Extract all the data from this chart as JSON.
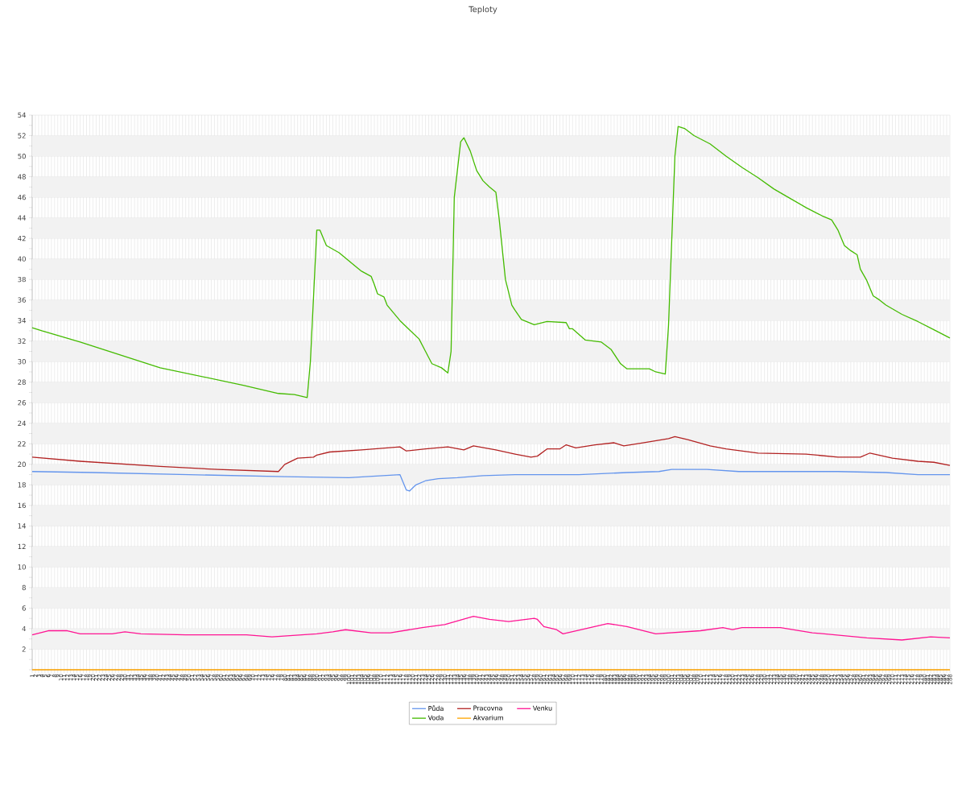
{
  "chart_data": {
    "type": "line",
    "title": "Teploty",
    "xlim": [
      1,
      288
    ],
    "xticks": [
      1,
      2,
      3,
      4,
      5,
      6,
      7,
      8,
      9,
      10,
      11,
      12,
      13,
      14,
      15,
      16,
      17,
      18,
      19,
      20,
      21,
      22,
      23,
      24,
      25,
      26,
      27,
      28,
      29,
      30,
      31,
      32,
      33,
      34,
      35,
      36,
      37,
      38,
      39,
      40,
      41,
      42,
      43,
      44,
      45,
      46,
      47,
      48,
      49,
      50,
      51,
      52,
      53,
      54,
      55,
      56,
      57,
      58,
      59,
      60,
      61,
      62,
      63,
      64,
      65,
      66,
      67,
      68,
      69,
      70,
      71,
      72,
      73,
      74,
      75,
      76,
      77,
      78,
      79,
      80,
      81,
      82,
      83,
      84,
      85,
      86,
      87,
      88,
      89,
      90,
      91,
      92,
      93,
      94,
      95,
      96,
      97,
      98,
      99,
      100,
      101,
      102,
      103,
      104,
      105,
      106,
      107,
      108,
      109,
      110,
      111,
      112,
      113,
      114,
      115,
      116,
      117,
      118,
      119,
      120,
      121,
      122,
      123,
      124,
      125,
      126,
      127,
      128,
      129,
      130,
      131,
      132,
      133,
      134,
      135,
      136,
      137,
      138,
      139,
      140,
      141,
      142,
      143,
      144,
      145,
      146,
      147,
      148,
      149,
      150,
      151,
      152,
      153,
      154,
      155,
      156,
      157,
      158,
      159,
      160,
      161,
      162,
      163,
      164,
      165,
      166,
      167,
      168,
      169,
      170,
      171,
      172,
      173,
      174,
      175,
      176,
      177,
      178,
      179,
      180,
      181,
      182,
      183,
      184,
      185,
      186,
      187,
      188,
      189,
      190,
      191,
      192,
      193,
      194,
      195,
      196,
      197,
      198,
      199,
      200,
      201,
      202,
      203,
      204,
      205,
      206,
      207,
      208,
      209,
      210,
      211,
      212,
      213,
      214,
      215,
      216,
      217,
      218,
      219,
      220,
      221,
      222,
      223,
      224,
      225,
      226,
      227,
      228,
      229,
      230,
      231,
      232,
      233,
      234,
      235,
      236,
      237,
      238,
      239,
      240,
      241,
      242,
      243,
      244,
      245,
      246,
      247,
      248,
      249,
      250,
      251,
      252,
      253,
      254,
      255,
      256,
      257,
      258,
      259,
      260,
      261,
      262,
      263,
      264,
      265,
      266,
      267,
      268,
      269,
      270,
      271,
      272,
      273,
      274,
      275,
      276,
      277,
      278,
      279,
      280,
      281,
      282,
      283,
      284,
      285,
      286,
      287,
      288
    ],
    "ylim": [
      0,
      54
    ],
    "yticks": [
      {
        "value": 0,
        "label": null
      },
      {
        "value": 1,
        "label": null
      },
      2,
      {
        "value": 3,
        "label": null
      },
      4,
      {
        "value": 5,
        "label": null
      },
      6,
      {
        "value": 7,
        "label": null
      },
      8,
      {
        "value": 9,
        "label": null
      },
      10,
      {
        "value": 11,
        "label": null
      },
      12,
      {
        "value": 13,
        "label": null
      },
      14,
      {
        "value": 15,
        "label": null
      },
      16,
      {
        "value": 17,
        "label": null
      },
      18,
      {
        "value": 19,
        "label": null
      },
      20,
      {
        "value": 21,
        "label": null
      },
      22,
      {
        "value": 23,
        "label": null
      },
      24,
      {
        "value": 25,
        "label": null
      },
      26,
      {
        "value": 27,
        "label": null
      },
      28,
      {
        "value": 29,
        "label": null
      },
      30,
      {
        "value": 31,
        "label": null
      },
      32,
      {
        "value": 33,
        "label": null
      },
      34,
      {
        "value": 35,
        "label": null
      },
      36,
      {
        "value": 37,
        "label": null
      },
      38,
      {
        "value": 39,
        "label": null
      },
      40,
      {
        "value": 41,
        "label": null
      },
      42,
      {
        "value": 43,
        "label": null
      },
      44,
      {
        "value": 45,
        "label": null
      },
      46,
      {
        "value": 47,
        "label": null
      },
      48,
      {
        "value": 49,
        "label": null
      },
      50,
      {
        "value": 51,
        "label": null
      },
      52,
      {
        "value": 53,
        "label": null
      },
      54
    ],
    "grid": true,
    "legend": "bottom",
    "marker": "none",
    "line_style": "solid",
    "bands": [
      {
        "axis": "y",
        "from": 2,
        "to": 4,
        "color": "#f2f2f2"
      },
      {
        "axis": "y",
        "from": 6,
        "to": 8,
        "color": "#f2f2f2"
      },
      {
        "axis": "y",
        "from": 10,
        "to": 12,
        "color": "#f2f2f2"
      },
      {
        "axis": "y",
        "from": 14,
        "to": 16,
        "color": "#f2f2f2"
      },
      {
        "axis": "y",
        "from": 18,
        "to": 20,
        "color": "#f2f2f2"
      },
      {
        "axis": "y",
        "from": 22,
        "to": 24,
        "color": "#f2f2f2"
      },
      {
        "axis": "y",
        "from": 26,
        "to": 28,
        "color": "#f2f2f2"
      },
      {
        "axis": "y",
        "from": 30,
        "to": 32,
        "color": "#f2f2f2"
      },
      {
        "axis": "y",
        "from": 34,
        "to": 36,
        "color": "#f2f2f2"
      },
      {
        "axis": "y",
        "from": 38,
        "to": 40,
        "color": "#f2f2f2"
      },
      {
        "axis": "y",
        "from": 42,
        "to": 44,
        "color": "#f2f2f2"
      },
      {
        "axis": "y",
        "from": 46,
        "to": 48,
        "color": "#f2f2f2"
      },
      {
        "axis": "y",
        "from": 50,
        "to": 52,
        "color": "#f2f2f2"
      }
    ],
    "series": [
      {
        "name": "Půda",
        "color": "#6495ed",
        "x": [
          1,
          20,
          50,
          80,
          100,
          116,
          118,
          119,
          121,
          124,
          128,
          134,
          142,
          152,
          172,
          187,
          197,
          201,
          212,
          222,
          253,
          268,
          278,
          288
        ],
        "values": [
          19.3,
          19.2,
          19.0,
          18.8,
          18.7,
          19.0,
          17.5,
          17.4,
          18.0,
          18.4,
          18.6,
          18.7,
          18.9,
          19.0,
          19.0,
          19.2,
          19.3,
          19.5,
          19.5,
          19.3,
          19.3,
          19.2,
          19.0,
          19.0
        ]
      },
      {
        "name": "Voda",
        "color": "#44bb00",
        "x": [
          1,
          4,
          16,
          41,
          67,
          78,
          83,
          87,
          88,
          90,
          91,
          93,
          97,
          102,
          104,
          107,
          108,
          109,
          111,
          112,
          116,
          119,
          122,
          124,
          126,
          129,
          131,
          132,
          133,
          135,
          136,
          138,
          140,
          142,
          144,
          146,
          147,
          149,
          151,
          152,
          154,
          158,
          162,
          168,
          169,
          170,
          174,
          179,
          182,
          185,
          187,
          194,
          196,
          199,
          200,
          202,
          203,
          205,
          208,
          213,
          218,
          223,
          228,
          233,
          238,
          243,
          248,
          251,
          253,
          255,
          257,
          259,
          260,
          262,
          264,
          266,
          268,
          273,
          278,
          283,
          288
        ],
        "values": [
          33.3,
          33.0,
          31.9,
          29.4,
          27.7,
          26.9,
          26.8,
          26.5,
          30.0,
          42.8,
          42.8,
          41.3,
          40.6,
          39.3,
          38.8,
          38.3,
          37.5,
          36.6,
          36.3,
          35.5,
          34.0,
          33.1,
          32.2,
          31.0,
          29.8,
          29.4,
          28.9,
          31.0,
          46.0,
          51.4,
          51.8,
          50.5,
          48.6,
          47.6,
          47.0,
          46.5,
          44.0,
          38.0,
          35.5,
          35.0,
          34.1,
          33.6,
          33.9,
          33.8,
          33.2,
          33.2,
          32.1,
          31.9,
          31.2,
          29.8,
          29.3,
          29.3,
          29.0,
          28.8,
          33.5,
          50.0,
          52.9,
          52.7,
          52.0,
          51.2,
          50.0,
          48.9,
          47.9,
          46.8,
          45.9,
          45.0,
          44.2,
          43.8,
          42.8,
          41.3,
          40.8,
          40.4,
          39.0,
          37.9,
          36.4,
          36.0,
          35.5,
          34.6,
          33.9,
          33.1,
          32.3
        ]
      },
      {
        "name": "Pracovna",
        "color": "#b22222",
        "x": [
          1,
          16,
          41,
          59,
          78,
          80,
          84,
          89,
          90,
          94,
          104,
          116,
          118,
          124,
          131,
          136,
          139,
          146,
          152,
          157,
          159,
          162,
          166,
          168,
          171,
          177,
          183,
          186,
          192,
          200,
          202,
          206,
          213,
          218,
          228,
          243,
          253,
          260,
          263,
          270,
          278,
          283,
          288
        ],
        "values": [
          20.7,
          20.3,
          19.8,
          19.5,
          19.3,
          20.0,
          20.6,
          20.7,
          20.9,
          21.2,
          21.4,
          21.7,
          21.3,
          21.5,
          21.7,
          21.4,
          21.8,
          21.4,
          21.0,
          20.7,
          20.8,
          21.5,
          21.5,
          21.9,
          21.6,
          21.9,
          22.1,
          21.8,
          22.1,
          22.5,
          22.7,
          22.4,
          21.8,
          21.5,
          21.1,
          21.0,
          20.7,
          20.7,
          21.1,
          20.6,
          20.3,
          20.2,
          19.9
        ]
      },
      {
        "name": "Akvarium",
        "color": "#ffa500",
        "x": [
          1,
          288
        ],
        "values": [
          0,
          0
        ]
      },
      {
        "name": "Venku",
        "color": "#ff1493",
        "x": [
          1,
          6,
          12,
          16,
          26,
          30,
          35,
          49,
          68,
          76,
          90,
          95,
          99,
          107,
          113,
          123,
          130,
          139,
          144,
          150,
          158,
          159,
          161,
          165,
          167,
          181,
          187,
          196,
          210,
          217,
          220,
          223,
          235,
          245,
          262,
          273,
          282,
          288
        ],
        "values": [
          3.4,
          3.8,
          3.8,
          3.5,
          3.5,
          3.7,
          3.5,
          3.4,
          3.4,
          3.2,
          3.5,
          3.7,
          3.9,
          3.6,
          3.6,
          4.1,
          4.4,
          5.2,
          4.9,
          4.7,
          5.0,
          4.9,
          4.2,
          3.9,
          3.5,
          4.5,
          4.2,
          3.5,
          3.8,
          4.1,
          3.9,
          4.1,
          4.1,
          3.6,
          3.1,
          2.9,
          3.2,
          3.1
        ]
      }
    ]
  }
}
